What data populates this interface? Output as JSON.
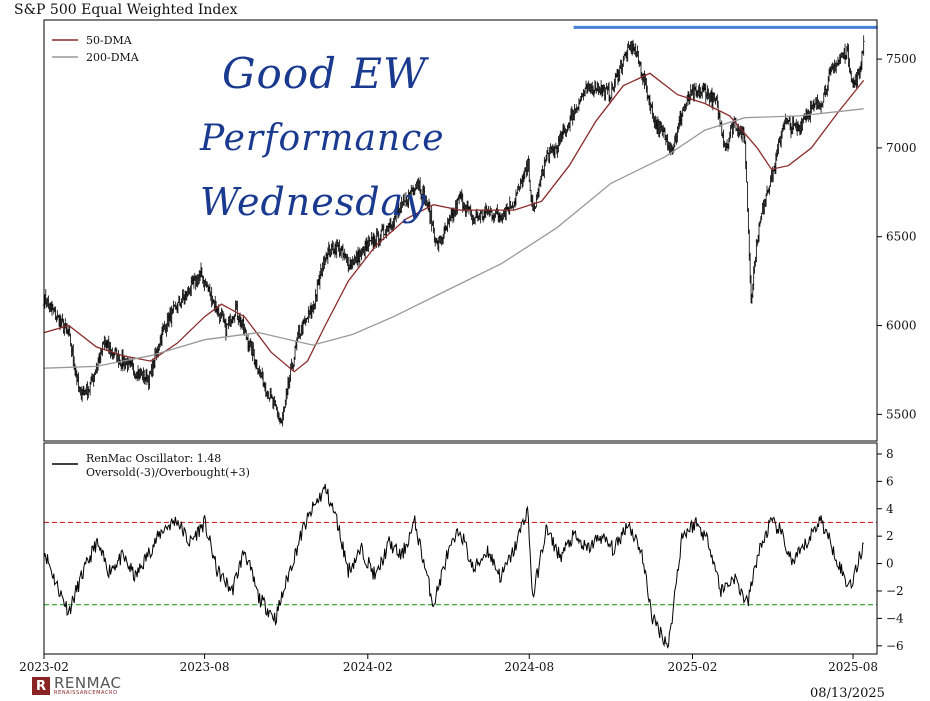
{
  "title": "S&P 500 Equal Weighted Index",
  "date_stamp": "08/13/2025",
  "logo": {
    "name": "RENMAC",
    "tagline": "RENAISSANCEMACRO"
  },
  "annotation": {
    "lines": [
      "Good EW",
      "Performance",
      "Wednesday"
    ],
    "color": "#1a3a8f"
  },
  "resistance_line": {
    "value": 7600,
    "from": "2024-09-20",
    "to": "2025-08-13",
    "color": "#4a7fd6"
  },
  "chart_data": [
    {
      "type": "line",
      "title": "S&P 500 Equal Weighted Index",
      "x_ticks": [
        "2023-02",
        "2023-08",
        "2024-02",
        "2024-08",
        "2025-02",
        "2025-08"
      ],
      "x_range": [
        "2023-02-01",
        "2025-08-28"
      ],
      "ylim": [
        5350,
        7720
      ],
      "y_ticks": [
        5500,
        6000,
        6500,
        7000,
        7500
      ],
      "legend_position": "upper-left",
      "grid": false,
      "series": [
        {
          "name": "Price",
          "color": "#000000",
          "style": "ohlc",
          "points": [
            [
              "2023-02-01",
              6150
            ],
            [
              "2023-02-15",
              6050
            ],
            [
              "2023-03-01",
              5950
            ],
            [
              "2023-03-13",
              5620
            ],
            [
              "2023-03-24",
              5650
            ],
            [
              "2023-04-10",
              5900
            ],
            [
              "2023-04-25",
              5820
            ],
            [
              "2023-05-10",
              5760
            ],
            [
              "2023-05-31",
              5700
            ],
            [
              "2023-06-15",
              5980
            ],
            [
              "2023-06-30",
              6100
            ],
            [
              "2023-07-15",
              6200
            ],
            [
              "2023-07-28",
              6290
            ],
            [
              "2023-08-10",
              6150
            ],
            [
              "2023-08-25",
              5980
            ],
            [
              "2023-09-05",
              6100
            ],
            [
              "2023-09-20",
              5900
            ],
            [
              "2023-10-05",
              5700
            ],
            [
              "2023-10-27",
              5450
            ],
            [
              "2023-11-05",
              5700
            ],
            [
              "2023-11-15",
              5950
            ],
            [
              "2023-12-01",
              6100
            ],
            [
              "2023-12-15",
              6400
            ],
            [
              "2023-12-28",
              6450
            ],
            [
              "2024-01-10",
              6350
            ],
            [
              "2024-01-20",
              6380
            ],
            [
              "2024-02-01",
              6450
            ],
            [
              "2024-02-15",
              6500
            ],
            [
              "2024-03-01",
              6600
            ],
            [
              "2024-03-15",
              6700
            ],
            [
              "2024-03-28",
              6820
            ],
            [
              "2024-04-10",
              6650
            ],
            [
              "2024-04-19",
              6450
            ],
            [
              "2024-05-01",
              6550
            ],
            [
              "2024-05-15",
              6720
            ],
            [
              "2024-05-30",
              6600
            ],
            [
              "2024-06-15",
              6640
            ],
            [
              "2024-06-30",
              6620
            ],
            [
              "2024-07-15",
              6700
            ],
            [
              "2024-07-31",
              6900
            ],
            [
              "2024-08-05",
              6620
            ],
            [
              "2024-08-20",
              6950
            ],
            [
              "2024-09-01",
              7000
            ],
            [
              "2024-09-15",
              7150
            ],
            [
              "2024-09-30",
              7300
            ],
            [
              "2024-10-15",
              7350
            ],
            [
              "2024-10-31",
              7300
            ],
            [
              "2024-11-15",
              7500
            ],
            [
              "2024-11-26",
              7580
            ],
            [
              "2024-12-05",
              7450
            ],
            [
              "2024-12-20",
              7150
            ],
            [
              "2025-01-10",
              7000
            ],
            [
              "2025-01-20",
              7200
            ],
            [
              "2025-01-31",
              7300
            ],
            [
              "2025-02-15",
              7320
            ],
            [
              "2025-02-28",
              7250
            ],
            [
              "2025-03-10",
              7000
            ],
            [
              "2025-03-20",
              7150
            ],
            [
              "2025-04-01",
              7050
            ],
            [
              "2025-04-08",
              6150
            ],
            [
              "2025-04-15",
              6500
            ],
            [
              "2025-04-25",
              6750
            ],
            [
              "2025-05-05",
              6900
            ],
            [
              "2025-05-15",
              7150
            ],
            [
              "2025-05-30",
              7100
            ],
            [
              "2025-06-10",
              7200
            ],
            [
              "2025-06-25",
              7250
            ],
            [
              "2025-07-10",
              7450
            ],
            [
              "2025-07-25",
              7550
            ],
            [
              "2025-08-01",
              7350
            ],
            [
              "2025-08-08",
              7420
            ],
            [
              "2025-08-13",
              7600
            ]
          ]
        },
        {
          "name": "50-DMA",
          "color": "#8b2a2a",
          "points": [
            [
              "2023-02-01",
              5960
            ],
            [
              "2023-03-01",
              6000
            ],
            [
              "2023-04-01",
              5880
            ],
            [
              "2023-05-01",
              5830
            ],
            [
              "2023-06-01",
              5800
            ],
            [
              "2023-07-01",
              5900
            ],
            [
              "2023-08-01",
              6050
            ],
            [
              "2023-08-20",
              6120
            ],
            [
              "2023-09-15",
              6050
            ],
            [
              "2023-10-15",
              5850
            ],
            [
              "2023-11-10",
              5740
            ],
            [
              "2023-11-25",
              5800
            ],
            [
              "2023-12-15",
              6000
            ],
            [
              "2024-01-10",
              6250
            ],
            [
              "2024-02-10",
              6450
            ],
            [
              "2024-03-15",
              6600
            ],
            [
              "2024-04-15",
              6680
            ],
            [
              "2024-05-15",
              6650
            ],
            [
              "2024-06-15",
              6650
            ],
            [
              "2024-07-15",
              6650
            ],
            [
              "2024-08-15",
              6700
            ],
            [
              "2024-09-15",
              6900
            ],
            [
              "2024-10-15",
              7150
            ],
            [
              "2024-11-15",
              7350
            ],
            [
              "2024-12-15",
              7420
            ],
            [
              "2025-01-15",
              7300
            ],
            [
              "2025-02-15",
              7250
            ],
            [
              "2025-03-15",
              7180
            ],
            [
              "2025-04-15",
              7000
            ],
            [
              "2025-05-01",
              6880
            ],
            [
              "2025-05-20",
              6900
            ],
            [
              "2025-06-15",
              7000
            ],
            [
              "2025-07-15",
              7200
            ],
            [
              "2025-08-13",
              7380
            ]
          ]
        },
        {
          "name": "200-DMA",
          "color": "#999999",
          "points": [
            [
              "2023-02-01",
              5760
            ],
            [
              "2023-04-01",
              5770
            ],
            [
              "2023-06-01",
              5830
            ],
            [
              "2023-08-01",
              5920
            ],
            [
              "2023-10-01",
              5960
            ],
            [
              "2023-12-01",
              5890
            ],
            [
              "2024-01-15",
              5950
            ],
            [
              "2024-03-01",
              6050
            ],
            [
              "2024-05-01",
              6200
            ],
            [
              "2024-07-01",
              6350
            ],
            [
              "2024-09-01",
              6550
            ],
            [
              "2024-11-01",
              6800
            ],
            [
              "2025-01-01",
              6950
            ],
            [
              "2025-02-15",
              7100
            ],
            [
              "2025-04-01",
              7170
            ],
            [
              "2025-06-01",
              7180
            ],
            [
              "2025-08-13",
              7220
            ]
          ]
        }
      ]
    },
    {
      "type": "line",
      "legend_entries": [
        "RenMac Oscillator: 1.48",
        "Oversold(-3)/Overbought(+3)"
      ],
      "ylim": [
        -6.6,
        8.8
      ],
      "y_ticks": [
        -6,
        -4,
        -2,
        0,
        2,
        4,
        6,
        8
      ],
      "x_ticks": [
        "2023-02",
        "2023-08",
        "2024-02",
        "2024-08",
        "2025-02",
        "2025-08"
      ],
      "legend_position": "upper-left",
      "reference_lines": [
        {
          "value": 3,
          "color": "#d62728",
          "style": "dashed"
        },
        {
          "value": -3,
          "color": "#2ca02c",
          "style": "dashed"
        }
      ],
      "series": [
        {
          "name": "RenMac Oscillator",
          "color": "#000000",
          "points": [
            [
              "2023-02-01",
              1.0
            ],
            [
              "2023-02-15",
              -1.5
            ],
            [
              "2023-03-01",
              -3.5
            ],
            [
              "2023-03-15",
              -1.0
            ],
            [
              "2023-04-01",
              1.5
            ],
            [
              "2023-04-15",
              -0.5
            ],
            [
              "2023-05-01",
              0.5
            ],
            [
              "2023-05-15",
              -1.0
            ],
            [
              "2023-06-01",
              1.0
            ],
            [
              "2023-06-15",
              2.5
            ],
            [
              "2023-07-01",
              3.2
            ],
            [
              "2023-07-15",
              1.5
            ],
            [
              "2023-08-01",
              3.0
            ],
            [
              "2023-08-15",
              -0.5
            ],
            [
              "2023-09-01",
              -2.0
            ],
            [
              "2023-09-15",
              1.0
            ],
            [
              "2023-10-01",
              -2.5
            ],
            [
              "2023-10-20",
              -4.0
            ],
            [
              "2023-11-05",
              -0.5
            ],
            [
              "2023-11-20",
              2.5
            ],
            [
              "2023-12-01",
              4.0
            ],
            [
              "2023-12-15",
              5.5
            ],
            [
              "2023-12-28",
              3.2
            ],
            [
              "2024-01-10",
              -0.5
            ],
            [
              "2024-01-25",
              1.0
            ],
            [
              "2024-02-10",
              -1.0
            ],
            [
              "2024-02-25",
              1.5
            ],
            [
              "2024-03-10",
              0.5
            ],
            [
              "2024-03-25",
              3.0
            ],
            [
              "2024-04-15",
              -3.0
            ],
            [
              "2024-04-30",
              0.5
            ],
            [
              "2024-05-15",
              2.5
            ],
            [
              "2024-05-30",
              -0.5
            ],
            [
              "2024-06-15",
              1.0
            ],
            [
              "2024-06-30",
              -1.0
            ],
            [
              "2024-07-15",
              1.0
            ],
            [
              "2024-07-30",
              4.0
            ],
            [
              "2024-08-05",
              -2.5
            ],
            [
              "2024-08-20",
              2.5
            ],
            [
              "2024-09-05",
              0.5
            ],
            [
              "2024-09-20",
              2.0
            ],
            [
              "2024-10-05",
              1.0
            ],
            [
              "2024-10-20",
              2.0
            ],
            [
              "2024-11-05",
              1.0
            ],
            [
              "2024-11-20",
              3.0
            ],
            [
              "2024-12-05",
              1.0
            ],
            [
              "2024-12-18",
              -4.0
            ],
            [
              "2025-01-05",
              -6.0
            ],
            [
              "2025-01-20",
              2.0
            ],
            [
              "2025-02-05",
              3.0
            ],
            [
              "2025-02-20",
              1.5
            ],
            [
              "2025-03-05",
              -2.0
            ],
            [
              "2025-03-20",
              -1.0
            ],
            [
              "2025-04-04",
              -3.0
            ],
            [
              "2025-04-15",
              0.5
            ],
            [
              "2025-04-30",
              3.0
            ],
            [
              "2025-05-10",
              2.5
            ],
            [
              "2025-05-25",
              0.0
            ],
            [
              "2025-06-10",
              1.5
            ],
            [
              "2025-06-25",
              3.3
            ],
            [
              "2025-07-10",
              1.0
            ],
            [
              "2025-07-25",
              -1.5
            ],
            [
              "2025-08-01",
              -1.2
            ],
            [
              "2025-08-13",
              1.48
            ]
          ]
        }
      ]
    }
  ]
}
